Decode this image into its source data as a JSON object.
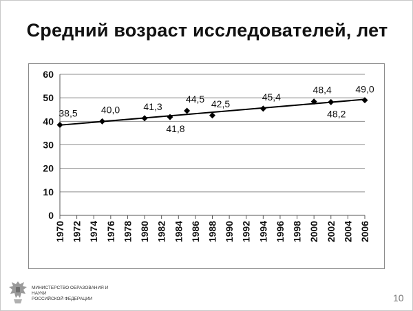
{
  "slide": {
    "title": "Средний возраст исследователей, лет",
    "footer_org_line1": "МИНИСТЕРСТВО ОБРАЗОВАНИЯ И НАУКИ",
    "footer_org_line2": "РОССИЙСКОЙ ФЕДЕРАЦИИ",
    "page_number": "10",
    "logo_icon": "double-headed-eagle-emblem-icon"
  },
  "chart_data": {
    "type": "line",
    "title": "Средний возраст исследователей, лет",
    "xlabel": "",
    "ylabel": "",
    "xlim": [
      1970,
      2006
    ],
    "ylim": [
      0,
      60
    ],
    "x_ticks": [
      "1970",
      "1972",
      "1974",
      "1976",
      "1978",
      "1980",
      "1982",
      "1984",
      "1986",
      "1988",
      "1990",
      "1992",
      "1994",
      "1996",
      "1998",
      "2000",
      "2002",
      "2004",
      "2006"
    ],
    "y_ticks": [
      "0",
      "10",
      "20",
      "30",
      "40",
      "50",
      "60"
    ],
    "grid": true,
    "legend": "none",
    "series": [
      {
        "x": [
          1970,
          1975,
          1980,
          1983,
          1985,
          1988,
          1994,
          2000,
          2002,
          2006
        ],
        "values": [
          38.5,
          40.0,
          41.3,
          41.8,
          44.5,
          42.5,
          45.4,
          48.4,
          48.2,
          49.0
        ],
        "labels": [
          "38,5",
          "40,0",
          "41,3",
          "41,8",
          "44,5",
          "42,5",
          "45,4",
          "48,4",
          "48,2",
          "49,0"
        ],
        "marker": "diamond",
        "color": "#000000"
      }
    ],
    "trendline": {
      "type": "linear",
      "color": "#000000"
    }
  }
}
